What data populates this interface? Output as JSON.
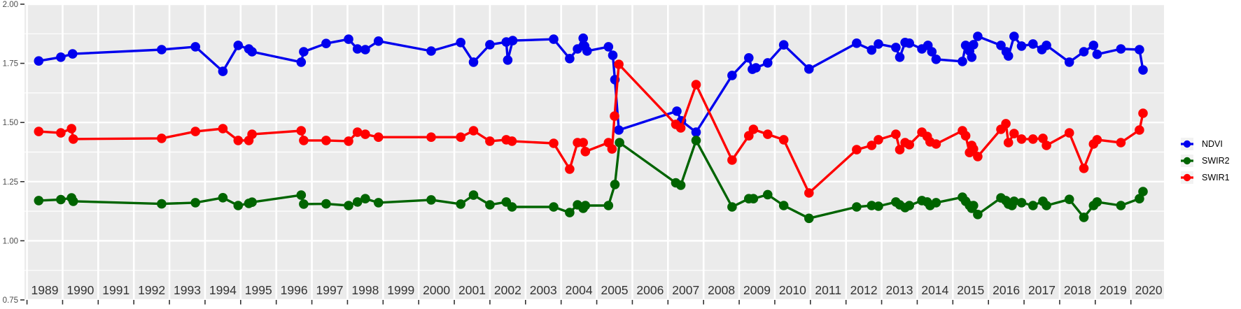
{
  "legend": {
    "items": [
      {
        "label": "NDVI",
        "color": "#0000ee"
      },
      {
        "label": "SWIR2",
        "color": "#006400"
      },
      {
        "label": "SWIR1",
        "color": "#ff0000"
      }
    ]
  },
  "chart_data": {
    "type": "line",
    "title": "",
    "xlabel": "",
    "ylabel": "",
    "legend_position": "right",
    "panel_bg": "#ebebeb",
    "grid_color": "#ffffff",
    "axis_text_color": "#4d4d4d",
    "year_label_color": "#333333",
    "tick_color": "#333333",
    "x_range": [
      1988.93,
      2020.93
    ],
    "y_range": [
      0.75,
      2.0
    ],
    "y_ticks": [
      {
        "v": 0.75,
        "label": "0.75"
      },
      {
        "v": 1.0,
        "label": "1.00"
      },
      {
        "v": 1.25,
        "label": "1.25"
      },
      {
        "v": 1.5,
        "label": "1.50"
      },
      {
        "v": 1.75,
        "label": "1.75"
      },
      {
        "v": 2.0,
        "label": "2.00"
      }
    ],
    "y_minor": [
      0.875,
      1.125,
      1.375,
      1.625,
      1.875
    ],
    "x_grid_years": [
      1989,
      1990,
      1991,
      1992,
      1993,
      1994,
      1995,
      1996,
      1997,
      1998,
      1999,
      2000,
      2001,
      2002,
      2003,
      2004,
      2005,
      2006,
      2007,
      2008,
      2009,
      2010,
      2011,
      2012,
      2013,
      2014,
      2015,
      2016,
      2017,
      2018,
      2019,
      2020
    ],
    "x_tick_labels": [
      "1989",
      "1990",
      "1991",
      "1992",
      "1993",
      "1994",
      "1995",
      "1996",
      "1997",
      "1998",
      "1999",
      "2000",
      "2001",
      "2002",
      "2003",
      "2004",
      "2005",
      "2006",
      "2007",
      "2008",
      "2009",
      "2010",
      "2011",
      "2012",
      "2013",
      "2014",
      "2015",
      "2016",
      "2017",
      "2018",
      "2019",
      "2020"
    ],
    "series": [
      {
        "name": "NDVI",
        "color": "#0000ee",
        "points": [
          [
            1989.33,
            1.76
          ],
          [
            1989.95,
            1.776
          ],
          [
            1990.28,
            1.79
          ],
          [
            1992.78,
            1.808
          ],
          [
            1993.73,
            1.82
          ],
          [
            1994.5,
            1.716
          ],
          [
            1994.93,
            1.826
          ],
          [
            1995.23,
            1.811
          ],
          [
            1995.32,
            1.799
          ],
          [
            1996.7,
            1.755
          ],
          [
            1996.77,
            1.799
          ],
          [
            1997.4,
            1.834
          ],
          [
            1998.03,
            1.852
          ],
          [
            1998.28,
            1.811
          ],
          [
            1998.5,
            1.808
          ],
          [
            1998.87,
            1.844
          ],
          [
            2000.35,
            1.802
          ],
          [
            2001.18,
            1.838
          ],
          [
            2001.54,
            1.755
          ],
          [
            2002.0,
            1.829
          ],
          [
            2002.46,
            1.84
          ],
          [
            2002.5,
            1.764
          ],
          [
            2002.64,
            1.846
          ],
          [
            2003.79,
            1.852
          ],
          [
            2004.24,
            1.77
          ],
          [
            2004.46,
            1.811
          ],
          [
            2004.62,
            1.856
          ],
          [
            2004.66,
            1.823
          ],
          [
            2004.73,
            1.802
          ],
          [
            2005.33,
            1.82
          ],
          [
            2005.45,
            1.784
          ],
          [
            2005.51,
            1.681
          ],
          [
            2005.62,
            1.468
          ],
          [
            2007.25,
            1.548
          ],
          [
            2007.38,
            1.507
          ],
          [
            2007.79,
            1.459
          ],
          [
            2008.8,
            1.699
          ],
          [
            2009.27,
            1.773
          ],
          [
            2009.37,
            1.725
          ],
          [
            2009.47,
            1.731
          ],
          [
            2009.8,
            1.752
          ],
          [
            2010.25,
            1.828
          ],
          [
            2010.96,
            1.726
          ],
          [
            2012.3,
            1.835
          ],
          [
            2012.72,
            1.806
          ],
          [
            2012.91,
            1.832
          ],
          [
            2013.4,
            1.817
          ],
          [
            2013.51,
            1.776
          ],
          [
            2013.66,
            1.838
          ],
          [
            2013.78,
            1.835
          ],
          [
            2014.13,
            1.811
          ],
          [
            2014.3,
            1.826
          ],
          [
            2014.41,
            1.799
          ],
          [
            2014.53,
            1.767
          ],
          [
            2015.27,
            1.758
          ],
          [
            2015.36,
            1.826
          ],
          [
            2015.47,
            1.802
          ],
          [
            2015.53,
            1.776
          ],
          [
            2015.58,
            1.829
          ],
          [
            2015.7,
            1.864
          ],
          [
            2016.35,
            1.826
          ],
          [
            2016.5,
            1.799
          ],
          [
            2016.56,
            1.781
          ],
          [
            2016.72,
            1.864
          ],
          [
            2016.93,
            1.823
          ],
          [
            2017.25,
            1.832
          ],
          [
            2017.5,
            1.808
          ],
          [
            2017.63,
            1.826
          ],
          [
            2018.27,
            1.755
          ],
          [
            2018.68,
            1.799
          ],
          [
            2018.95,
            1.826
          ],
          [
            2019.05,
            1.788
          ],
          [
            2019.72,
            1.811
          ],
          [
            2020.24,
            1.808
          ],
          [
            2020.34,
            1.722
          ]
        ]
      },
      {
        "name": "SWIR2",
        "color": "#006400",
        "points": [
          [
            1989.33,
            1.17
          ],
          [
            1989.95,
            1.174
          ],
          [
            1990.25,
            1.181
          ],
          [
            1990.3,
            1.167
          ],
          [
            1992.78,
            1.156
          ],
          [
            1993.73,
            1.161
          ],
          [
            1994.5,
            1.182
          ],
          [
            1994.93,
            1.149
          ],
          [
            1995.23,
            1.158
          ],
          [
            1995.32,
            1.163
          ],
          [
            1996.7,
            1.193
          ],
          [
            1996.77,
            1.155
          ],
          [
            1997.4,
            1.156
          ],
          [
            1998.03,
            1.149
          ],
          [
            1998.28,
            1.164
          ],
          [
            1998.5,
            1.178
          ],
          [
            1998.87,
            1.161
          ],
          [
            2000.35,
            1.173
          ],
          [
            2001.18,
            1.155
          ],
          [
            2001.54,
            1.193
          ],
          [
            2002.0,
            1.152
          ],
          [
            2002.46,
            1.164
          ],
          [
            2002.62,
            1.143
          ],
          [
            2003.79,
            1.143
          ],
          [
            2004.24,
            1.119
          ],
          [
            2004.46,
            1.152
          ],
          [
            2004.62,
            1.137
          ],
          [
            2004.68,
            1.149
          ],
          [
            2005.33,
            1.149
          ],
          [
            2005.51,
            1.238
          ],
          [
            2005.64,
            1.415
          ],
          [
            2007.22,
            1.245
          ],
          [
            2007.36,
            1.235
          ],
          [
            2007.79,
            1.424
          ],
          [
            2008.8,
            1.143
          ],
          [
            2009.27,
            1.178
          ],
          [
            2009.4,
            1.178
          ],
          [
            2009.8,
            1.195
          ],
          [
            2010.25,
            1.149
          ],
          [
            2010.96,
            1.095
          ],
          [
            2012.3,
            1.143
          ],
          [
            2012.72,
            1.149
          ],
          [
            2012.91,
            1.146
          ],
          [
            2013.4,
            1.164
          ],
          [
            2013.51,
            1.152
          ],
          [
            2013.66,
            1.14
          ],
          [
            2013.78,
            1.149
          ],
          [
            2014.13,
            1.17
          ],
          [
            2014.28,
            1.164
          ],
          [
            2014.36,
            1.149
          ],
          [
            2014.53,
            1.161
          ],
          [
            2015.27,
            1.184
          ],
          [
            2015.36,
            1.167
          ],
          [
            2015.47,
            1.149
          ],
          [
            2015.53,
            1.137
          ],
          [
            2015.58,
            1.149
          ],
          [
            2015.7,
            1.111
          ],
          [
            2016.35,
            1.181
          ],
          [
            2016.49,
            1.17
          ],
          [
            2016.56,
            1.155
          ],
          [
            2016.66,
            1.149
          ],
          [
            2016.72,
            1.167
          ],
          [
            2016.93,
            1.161
          ],
          [
            2017.25,
            1.149
          ],
          [
            2017.53,
            1.167
          ],
          [
            2017.63,
            1.149
          ],
          [
            2018.27,
            1.175
          ],
          [
            2018.68,
            1.099
          ],
          [
            2018.95,
            1.149
          ],
          [
            2019.05,
            1.164
          ],
          [
            2019.72,
            1.149
          ],
          [
            2020.24,
            1.178
          ],
          [
            2020.34,
            1.208
          ]
        ]
      },
      {
        "name": "SWIR1",
        "color": "#ff0000",
        "points": [
          [
            1989.33,
            1.462
          ],
          [
            1989.95,
            1.456
          ],
          [
            1990.25,
            1.474
          ],
          [
            1990.3,
            1.43
          ],
          [
            1992.78,
            1.433
          ],
          [
            1993.73,
            1.462
          ],
          [
            1994.5,
            1.474
          ],
          [
            1994.93,
            1.424
          ],
          [
            1995.23,
            1.424
          ],
          [
            1995.32,
            1.45
          ],
          [
            1996.7,
            1.465
          ],
          [
            1996.77,
            1.424
          ],
          [
            1997.4,
            1.424
          ],
          [
            1998.03,
            1.421
          ],
          [
            1998.28,
            1.459
          ],
          [
            1998.5,
            1.45
          ],
          [
            1998.87,
            1.438
          ],
          [
            2000.35,
            1.438
          ],
          [
            2001.18,
            1.438
          ],
          [
            2001.54,
            1.465
          ],
          [
            2002.0,
            1.421
          ],
          [
            2002.46,
            1.427
          ],
          [
            2002.62,
            1.421
          ],
          [
            2003.79,
            1.412
          ],
          [
            2004.24,
            1.303
          ],
          [
            2004.46,
            1.415
          ],
          [
            2004.62,
            1.415
          ],
          [
            2004.68,
            1.377
          ],
          [
            2005.33,
            1.415
          ],
          [
            2005.43,
            1.388
          ],
          [
            2005.5,
            1.527
          ],
          [
            2005.62,
            1.746
          ],
          [
            2007.22,
            1.492
          ],
          [
            2007.36,
            1.477
          ],
          [
            2007.79,
            1.66
          ],
          [
            2008.8,
            1.341
          ],
          [
            2009.27,
            1.444
          ],
          [
            2009.4,
            1.471
          ],
          [
            2009.8,
            1.45
          ],
          [
            2010.25,
            1.427
          ],
          [
            2010.96,
            1.202
          ],
          [
            2012.3,
            1.385
          ],
          [
            2012.72,
            1.403
          ],
          [
            2012.91,
            1.427
          ],
          [
            2013.4,
            1.45
          ],
          [
            2013.51,
            1.385
          ],
          [
            2013.66,
            1.415
          ],
          [
            2013.78,
            1.406
          ],
          [
            2014.13,
            1.459
          ],
          [
            2014.28,
            1.441
          ],
          [
            2014.36,
            1.418
          ],
          [
            2014.53,
            1.409
          ],
          [
            2015.27,
            1.465
          ],
          [
            2015.36,
            1.444
          ],
          [
            2015.47,
            1.373
          ],
          [
            2015.53,
            1.403
          ],
          [
            2015.58,
            1.388
          ],
          [
            2015.7,
            1.356
          ],
          [
            2016.35,
            1.471
          ],
          [
            2016.49,
            1.495
          ],
          [
            2016.56,
            1.415
          ],
          [
            2016.72,
            1.453
          ],
          [
            2016.93,
            1.43
          ],
          [
            2017.25,
            1.43
          ],
          [
            2017.53,
            1.433
          ],
          [
            2017.63,
            1.403
          ],
          [
            2018.27,
            1.456
          ],
          [
            2018.68,
            1.306
          ],
          [
            2018.95,
            1.409
          ],
          [
            2019.05,
            1.427
          ],
          [
            2019.72,
            1.415
          ],
          [
            2020.24,
            1.468
          ],
          [
            2020.34,
            1.539
          ]
        ]
      }
    ]
  }
}
